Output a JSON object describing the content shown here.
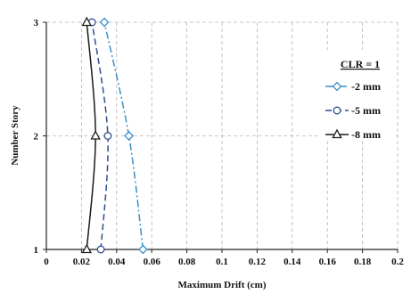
{
  "chart_data": {
    "type": "line",
    "xlabel": "Maximum Drift (cm)",
    "ylabel": "Number Story",
    "xlim": [
      0,
      0.2
    ],
    "ylim": [
      1,
      3
    ],
    "x_ticks": [
      "0",
      "0.02",
      "0.04",
      "0.06",
      "0.08",
      "0.1",
      "0.12",
      "0.14",
      "0.16",
      "0.18",
      "0.2"
    ],
    "y_ticks": [
      "1",
      "2",
      "3"
    ],
    "grid": "vertical and horizontal dashed",
    "legend": {
      "title": "CLR = 1",
      "placement": "top-right"
    },
    "series": [
      {
        "name": "-2 mm",
        "marker": "diamond",
        "line_style": "dash-dot",
        "color": "#3a8fc9",
        "points": [
          {
            "x": 0.055,
            "y": 1
          },
          {
            "x": 0.047,
            "y": 2
          },
          {
            "x": 0.033,
            "y": 3
          }
        ]
      },
      {
        "name": "-5 mm",
        "marker": "circle",
        "line_style": "dashed",
        "color": "#2f4f8f",
        "points": [
          {
            "x": 0.031,
            "y": 1
          },
          {
            "x": 0.035,
            "y": 2
          },
          {
            "x": 0.026,
            "y": 3
          }
        ]
      },
      {
        "name": "-8 mm",
        "marker": "triangle",
        "line_style": "solid",
        "color": "#1a1a1a",
        "points": [
          {
            "x": 0.023,
            "y": 1
          },
          {
            "x": 0.028,
            "y": 2
          },
          {
            "x": 0.023,
            "y": 3
          }
        ]
      }
    ]
  }
}
